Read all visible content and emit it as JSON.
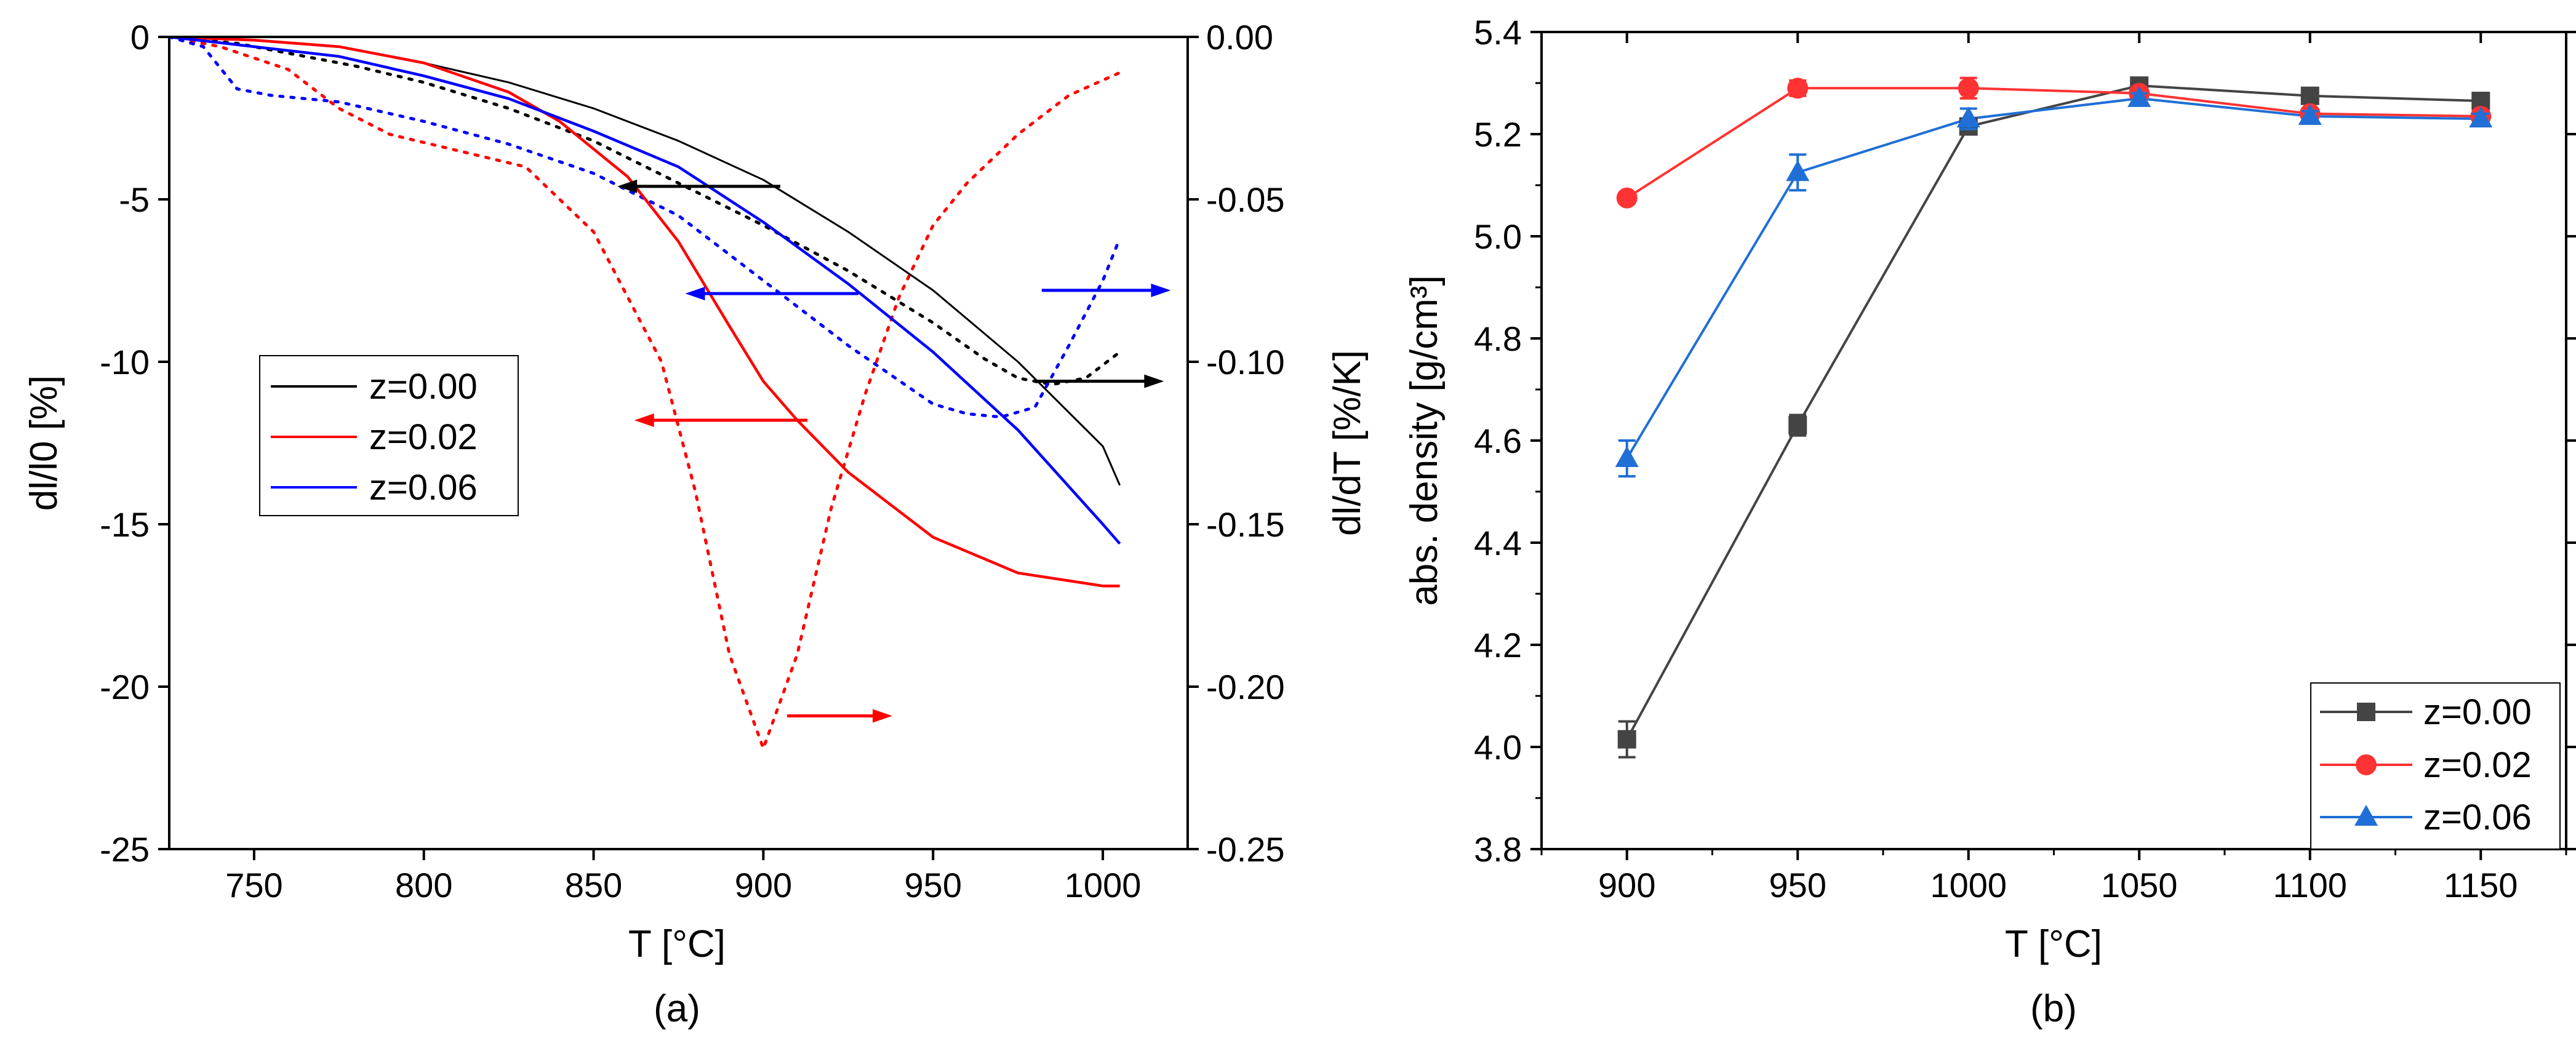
{
  "colors": {
    "z000": "#000000",
    "z002": "#ff0000",
    "z006": "#0000ff",
    "b_z000": "#444444",
    "b_z002": "#ff3333",
    "b_z006": "#1f6fd6"
  },
  "chart_data": [
    {
      "panel": "(a)",
      "type": "line",
      "xlabel": "T [°C]",
      "ylabel_left": "dl/l0 [%]",
      "ylabel_right": "dl/dT [%/K]",
      "xlim": [
        725,
        1025
      ],
      "ylim_left": [
        -25,
        0
      ],
      "ylim_right": [
        -0.25,
        0.0
      ],
      "xticks": [
        750,
        800,
        850,
        900,
        950,
        1000
      ],
      "yticks_left": [
        0,
        -5,
        -10,
        -15,
        -20,
        -25
      ],
      "yticks_right": [
        "0.00",
        "-0.05",
        "-0.10",
        "-0.15",
        "-0.20",
        "-0.25"
      ],
      "legend": [
        "z=0.00",
        "z=0.02",
        "z=0.06"
      ],
      "legend_position": "middle-left",
      "series_dl": [
        {
          "name": "z=0.00",
          "color_key": "z000",
          "x": [
            725,
            750,
            775,
            800,
            825,
            850,
            875,
            900,
            925,
            950,
            975,
            1000,
            1005
          ],
          "y": [
            0,
            -0.1,
            -0.3,
            -0.8,
            -1.4,
            -2.2,
            -3.2,
            -4.4,
            -6.0,
            -7.8,
            -10.0,
            -12.6,
            -13.8
          ]
        },
        {
          "name": "z=0.02",
          "color_key": "z002",
          "x": [
            725,
            750,
            775,
            800,
            825,
            840,
            860,
            875,
            890,
            900,
            910,
            925,
            950,
            975,
            1000,
            1005
          ],
          "y": [
            0,
            -0.1,
            -0.3,
            -0.8,
            -1.7,
            -2.6,
            -4.3,
            -6.3,
            -8.9,
            -10.6,
            -11.8,
            -13.4,
            -15.4,
            -16.5,
            -16.9,
            -16.9
          ]
        },
        {
          "name": "z=0.06",
          "color_key": "z006",
          "x": [
            725,
            750,
            775,
            800,
            825,
            850,
            875,
            900,
            925,
            950,
            975,
            1000,
            1005
          ],
          "y": [
            0,
            -0.3,
            -0.6,
            -1.2,
            -1.9,
            -2.9,
            -4.0,
            -5.7,
            -7.6,
            -9.7,
            -12.1,
            -15.0,
            -15.6
          ]
        }
      ],
      "series_rate": [
        {
          "name": "z=0.00",
          "color_key": "z000",
          "x": [
            725,
            735,
            745,
            760,
            780,
            800,
            825,
            850,
            875,
            900,
            925,
            950,
            965,
            975,
            985,
            995,
            1005
          ],
          "y": [
            0.0,
            -0.001,
            -0.002,
            -0.005,
            -0.009,
            -0.014,
            -0.022,
            -0.032,
            -0.045,
            -0.058,
            -0.072,
            -0.088,
            -0.099,
            -0.105,
            -0.107,
            -0.105,
            -0.097
          ]
        },
        {
          "name": "z=0.02",
          "color_key": "z002",
          "x": [
            725,
            740,
            760,
            775,
            790,
            810,
            830,
            850,
            860,
            870,
            880,
            890,
            900,
            910,
            920,
            930,
            940,
            950,
            960,
            975,
            990,
            1005
          ],
          "y": [
            0.0,
            -0.003,
            -0.01,
            -0.022,
            -0.03,
            -0.035,
            -0.04,
            -0.06,
            -0.08,
            -0.1,
            -0.14,
            -0.19,
            -0.219,
            -0.19,
            -0.145,
            -0.11,
            -0.08,
            -0.058,
            -0.045,
            -0.03,
            -0.018,
            -0.011
          ]
        },
        {
          "name": "z=0.06",
          "color_key": "z006",
          "x": [
            725,
            735,
            745,
            755,
            775,
            800,
            825,
            850,
            875,
            900,
            925,
            950,
            960,
            970,
            980,
            990,
            1000,
            1005
          ],
          "y": [
            0.0,
            -0.003,
            -0.016,
            -0.018,
            -0.02,
            -0.026,
            -0.033,
            -0.042,
            -0.055,
            -0.075,
            -0.095,
            -0.113,
            -0.116,
            -0.117,
            -0.114,
            -0.095,
            -0.075,
            -0.062
          ]
        }
      ],
      "arrows": [
        {
          "color_key": "z000",
          "from_x": 905,
          "to_x": 857,
          "y": -4.6,
          "direction": "left"
        },
        {
          "color_key": "z006",
          "from_x": 928,
          "to_x": 877,
          "y": -7.9,
          "direction": "left"
        },
        {
          "color_key": "z002",
          "from_x": 913,
          "to_x": 862,
          "y": -11.8,
          "direction": "left"
        },
        {
          "color_key": "z000",
          "from_x": 980,
          "to_x": 1018,
          "y": -10.6,
          "direction": "right"
        },
        {
          "color_key": "z006",
          "from_x": 982,
          "to_x": 1020,
          "y": -7.8,
          "direction": "right"
        },
        {
          "color_key": "z002",
          "from_x": 907,
          "to_x": 938,
          "y": -20.9,
          "direction": "right"
        }
      ]
    },
    {
      "panel": "(b)",
      "type": "line",
      "xlabel": "T [°C]",
      "ylabel": "abs. density [g/cm³]",
      "xlim": [
        875,
        1175
      ],
      "ylim": [
        3.8,
        5.4
      ],
      "xticks": [
        900,
        950,
        1000,
        1050,
        1100,
        1150
      ],
      "yticks": [
        "3.8",
        "4.0",
        "4.2",
        "4.4",
        "4.6",
        "4.8",
        "5.0",
        "5.2",
        "5.4"
      ],
      "categories": [
        900,
        950,
        1000,
        1050,
        1100,
        1150
      ],
      "legend": [
        "z=0.00",
        "z=0.02",
        "z=0.06"
      ],
      "legend_position": "bottom-right",
      "series": [
        {
          "name": "z=0.00",
          "marker": "square",
          "color_key": "b_z000",
          "values": [
            4.015,
            4.63,
            5.215,
            5.295,
            5.275,
            5.265
          ],
          "errors": [
            0.035,
            0.02,
            0.015,
            0.01,
            0.01,
            0.01
          ]
        },
        {
          "name": "z=0.02",
          "marker": "circle",
          "color_key": "b_z002",
          "values": [
            5.075,
            5.29,
            5.29,
            5.28,
            5.24,
            5.235
          ],
          "errors": [
            0.01,
            0.015,
            0.02,
            0.01,
            0.01,
            0.01
          ]
        },
        {
          "name": "z=0.06",
          "marker": "triangle",
          "color_key": "b_z006",
          "values": [
            4.565,
            5.125,
            5.23,
            5.27,
            5.235,
            5.23
          ],
          "errors": [
            0.035,
            0.035,
            0.02,
            0.01,
            0.01,
            0.01
          ]
        }
      ]
    }
  ]
}
